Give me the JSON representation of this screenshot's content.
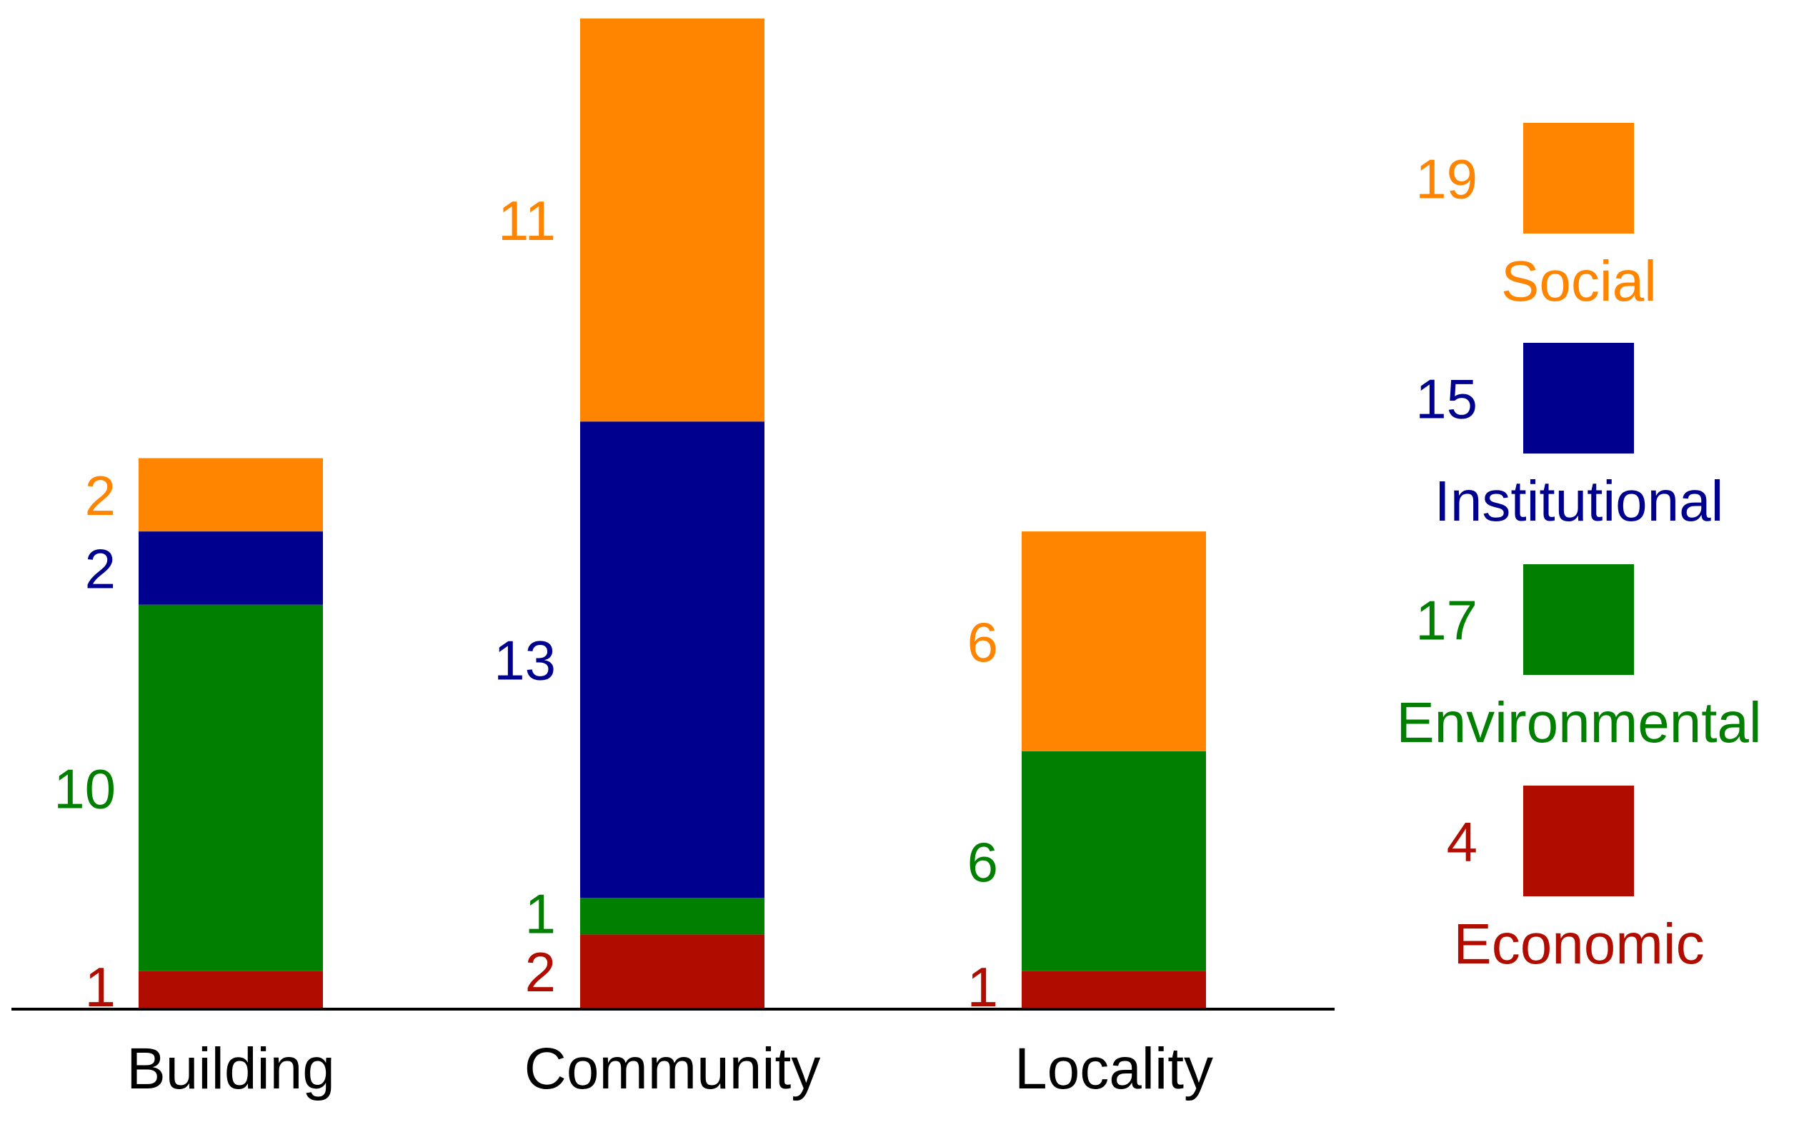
{
  "chart_data": {
    "type": "bar",
    "stacked": true,
    "title": "",
    "xlabel": "",
    "ylabel": "",
    "categories": [
      "Building",
      "Community",
      "Locality"
    ],
    "series": [
      {
        "name": "Economic",
        "color": "#b00d00",
        "values": [
          1,
          2,
          1
        ]
      },
      {
        "name": "Environmental",
        "color": "#007f00",
        "values": [
          10,
          1,
          6
        ]
      },
      {
        "name": "Institutional",
        "color": "#00008f",
        "values": [
          2,
          13,
          0
        ]
      },
      {
        "name": "Social",
        "color": "#ff8400",
        "values": [
          2,
          11,
          6
        ]
      }
    ],
    "legend": {
      "placement": "right",
      "entries": [
        {
          "name": "Social",
          "total": "19",
          "color": "#ff8400"
        },
        {
          "name": "Institutional",
          "total": "15",
          "color": "#00008f"
        },
        {
          "name": "Environmental",
          "total": "17",
          "color": "#007f00"
        },
        {
          "name": "Economic",
          "total": "4",
          "color": "#b00d00"
        }
      ]
    },
    "ylim": [
      0,
      27
    ],
    "grid": false
  }
}
